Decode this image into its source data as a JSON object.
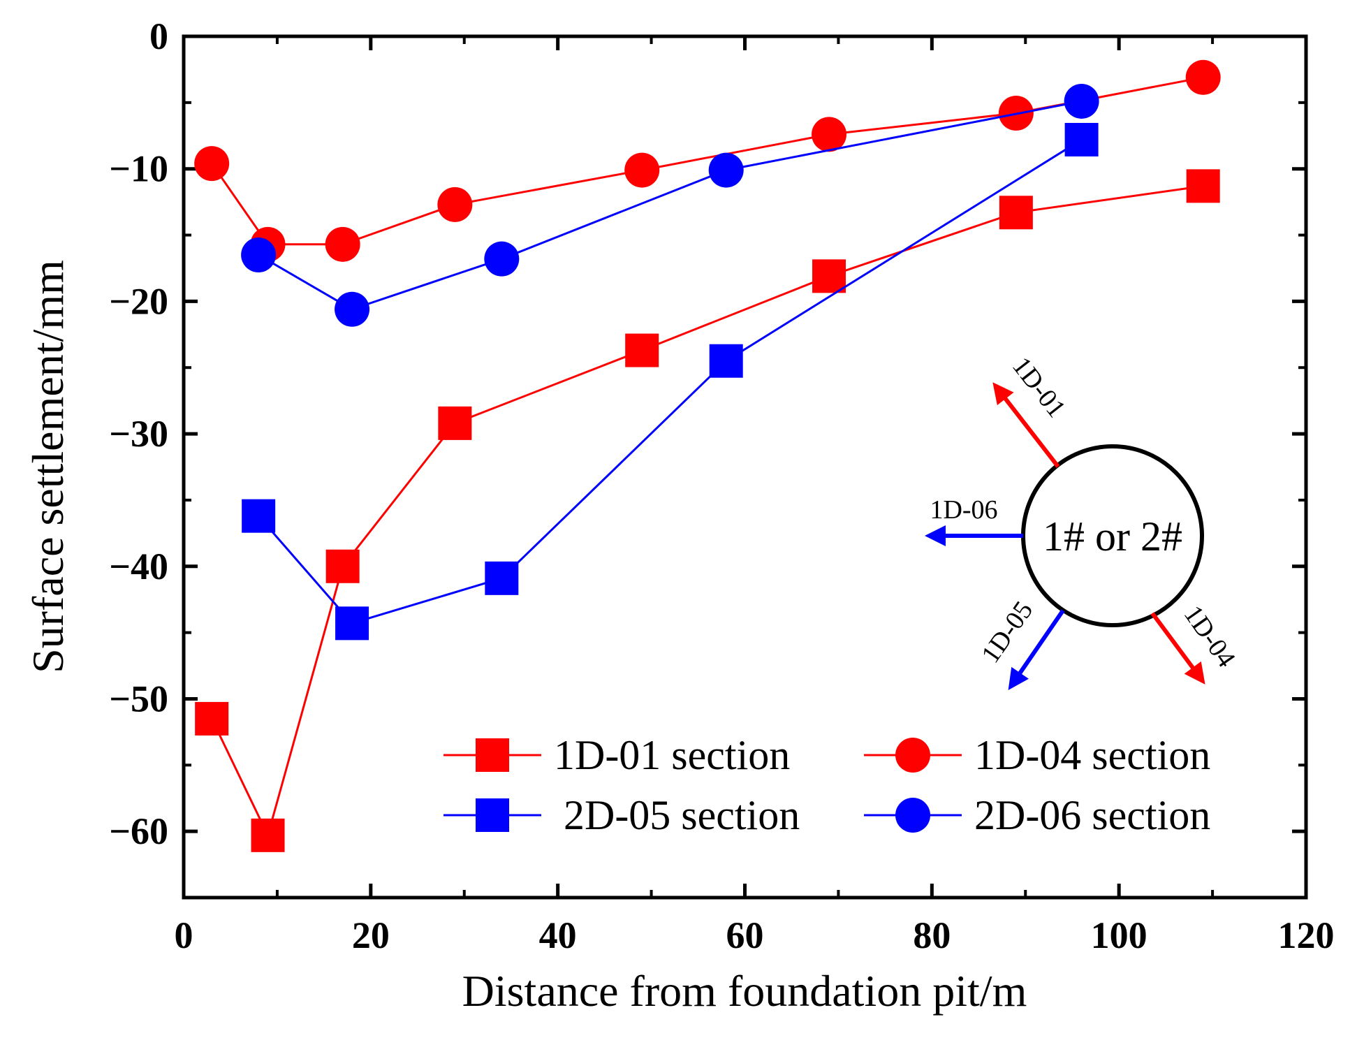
{
  "chart_data": {
    "type": "line",
    "xlabel": "Distance from foundation pit/m",
    "ylabel": "Surface settlement/mm",
    "xlim": [
      0,
      120
    ],
    "ylim": [
      -65,
      0
    ],
    "x_ticks": [
      0,
      20,
      40,
      60,
      80,
      100,
      120
    ],
    "y_ticks": [
      0,
      -10,
      -20,
      -30,
      -40,
      -50,
      -60
    ],
    "grid": false,
    "legend_position": "bottom-right",
    "series": [
      {
        "name": "1D-01 section",
        "color": "#ff0000",
        "marker": "square",
        "x": [
          3,
          9,
          17,
          29,
          49,
          69,
          89,
          109
        ],
        "y": [
          -51.5,
          -60.3,
          -40.0,
          -29.2,
          -23.7,
          -18.1,
          -13.3,
          -11.3
        ]
      },
      {
        "name": "1D-04 section",
        "color": "#ff0000",
        "marker": "circle",
        "x": [
          3,
          9,
          17,
          29,
          49,
          69,
          89,
          109
        ],
        "y": [
          -9.6,
          -15.7,
          -15.7,
          -12.7,
          -10.1,
          -7.4,
          -5.8,
          -3.1
        ]
      },
      {
        "name": "2D-05 section",
        "color": "#0000ff",
        "marker": "square",
        "x": [
          8,
          18,
          34,
          58,
          96
        ],
        "y": [
          -36.2,
          -44.3,
          -40.9,
          -24.5,
          -7.8
        ]
      },
      {
        "name": "2D-06 section",
        "color": "#0000ff",
        "marker": "circle",
        "x": [
          8,
          18,
          34,
          58,
          96
        ],
        "y": [
          -16.5,
          -20.6,
          -16.8,
          -10.1,
          -4.9
        ]
      }
    ],
    "inset": {
      "center_label": "1# or 2#",
      "arrows": [
        {
          "label": "1D-01",
          "color": "#ff0000"
        },
        {
          "label": "1D-06",
          "color": "#0000ff"
        },
        {
          "label": "1D-05",
          "color": "#0000ff"
        },
        {
          "label": "1D-04",
          "color": "#ff0000"
        }
      ]
    }
  }
}
